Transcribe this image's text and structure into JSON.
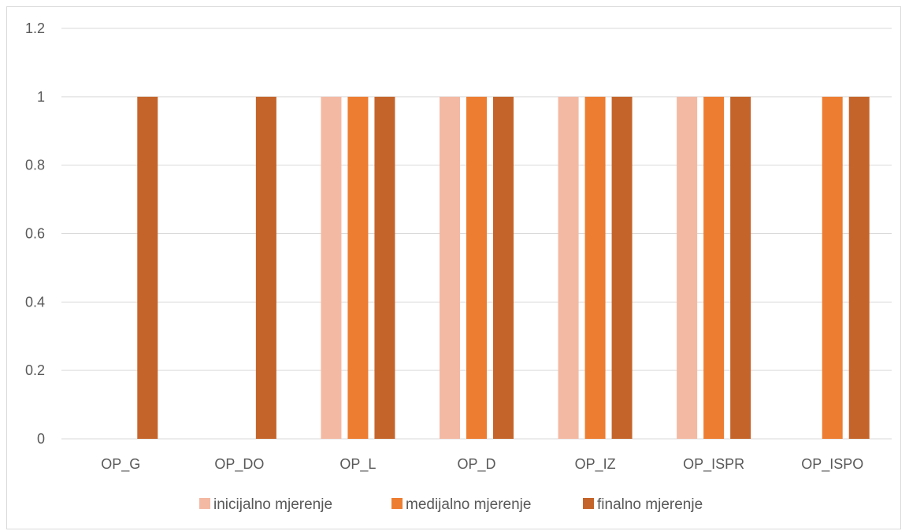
{
  "chart_data": {
    "type": "bar",
    "categories": [
      "OP_G",
      "OP_DO",
      "OP_L",
      "OP_D",
      "OP_IZ",
      "OP_ISPR",
      "OP_ISPO"
    ],
    "series": [
      {
        "name": "inicijalno mjerenje",
        "color": "#F4B9A3",
        "values": [
          0,
          0,
          1,
          1,
          1,
          1,
          0
        ]
      },
      {
        "name": "medijalno mjerenje",
        "color": "#ED7D31",
        "values": [
          0,
          0,
          1,
          1,
          1,
          1,
          1
        ]
      },
      {
        "name": "finalno mjerenje",
        "color": "#C5642A",
        "values": [
          1,
          1,
          1,
          1,
          1,
          1,
          1
        ]
      }
    ],
    "yticks": [
      "0",
      "0.2",
      "0.4",
      "0.6",
      "0.8",
      "1",
      "1.2"
    ],
    "ylim": [
      0,
      1.2
    ],
    "grid": true,
    "legend_position": "bottom"
  }
}
